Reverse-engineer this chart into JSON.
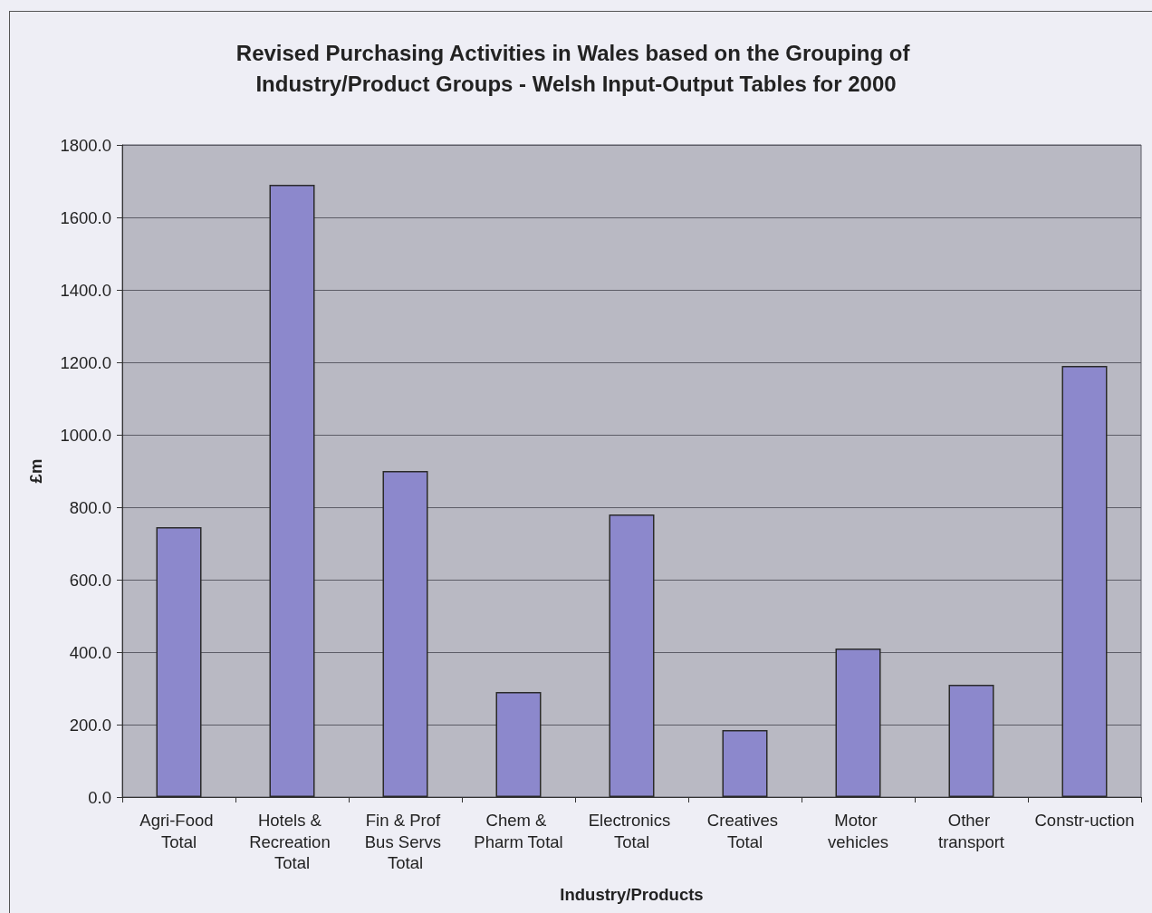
{
  "chart_data": {
    "type": "bar",
    "title": "Revised Purchasing Activities in Wales based on the Grouping of Industry/Product Groups - Welsh Input-Output Tables for 2000",
    "xlabel": "Industry/Products",
    "ylabel": "£m",
    "categories": [
      "Agri-Food Total",
      "Hotels & Recreation Total",
      "Fin & Prof Bus Servs Total",
      "Chem & Pharm Total",
      "Electronics Total",
      "Creatives Total",
      "Motor vehicles",
      "Other transport",
      "Constr-uction"
    ],
    "values": [
      745,
      1690,
      900,
      290,
      780,
      185,
      410,
      310,
      1190
    ],
    "color": "#8c88cc",
    "ylim": [
      0,
      1800
    ],
    "yticks": [
      {
        "value": 0,
        "label": "0.0"
      },
      {
        "value": 200,
        "label": "200.0"
      },
      {
        "value": 400,
        "label": "400.0"
      },
      {
        "value": 600,
        "label": "600.0"
      },
      {
        "value": 800,
        "label": "800.0"
      },
      {
        "value": 1000,
        "label": "1000.0"
      },
      {
        "value": 1200,
        "label": "1200.0"
      },
      {
        "value": 1400,
        "label": "1400.0"
      },
      {
        "value": 1600,
        "label": "1600.0"
      },
      {
        "value": 1800,
        "label": "1800.0"
      }
    ],
    "grid": "y"
  }
}
